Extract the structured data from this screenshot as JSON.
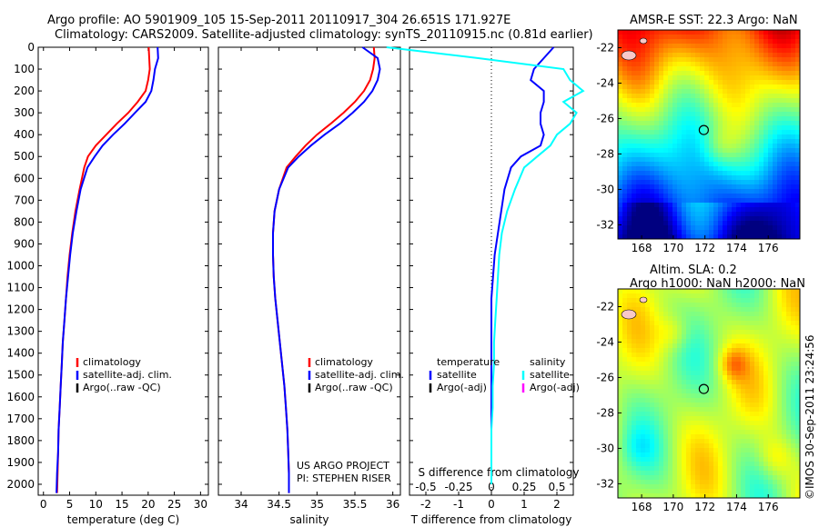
{
  "header": {
    "line1": "Argo profile: AO 5901909_105 15-Sep-2011 20110917_304 26.651S 171.927E",
    "line2": "Climatology: CARS2009. Satellite-adjusted climatology: synTS_20110915.nc (0.81d earlier)"
  },
  "colors": {
    "climatology": "#ff0000",
    "satellite": "#0000ff",
    "satellite_s": "#00ffff",
    "argo": "#000000",
    "argo_s": "#ff00ff"
  },
  "chart_data": [
    {
      "type": "line",
      "id": "temperature",
      "xlabel": "temperature (deg C)",
      "ylabel": "",
      "xlim": [
        -1,
        31.5
      ],
      "ylim": [
        2050,
        0
      ],
      "xticks": [
        "0",
        "5",
        "10",
        "15",
        "20",
        "25",
        "30"
      ],
      "yticks": [
        "0",
        "100",
        "200",
        "300",
        "400",
        "500",
        "600",
        "700",
        "800",
        "900",
        "1000",
        "1100",
        "1200",
        "1300",
        "1400",
        "1500",
        "1600",
        "1700",
        "1800",
        "1900",
        "2000"
      ],
      "legend": [
        "climatology",
        "satellite-adj. clim.",
        "Argo(..raw -QC)"
      ],
      "series": [
        {
          "name": "climatology",
          "color": "#ff0000",
          "x": [
            20.1,
            20.2,
            20.3,
            20.0,
            19.5,
            18.0,
            16.2,
            14.0,
            12.0,
            10.0,
            8.5,
            7.8,
            6.9,
            6.1,
            5.5,
            5.0,
            4.6,
            4.3,
            4.0,
            3.7,
            3.5,
            3.3,
            3.1,
            2.9,
            2.8,
            2.7,
            2.6
          ],
          "y": [
            0,
            50,
            100,
            150,
            200,
            250,
            300,
            350,
            400,
            450,
            500,
            550,
            650,
            750,
            850,
            950,
            1050,
            1150,
            1250,
            1350,
            1450,
            1550,
            1650,
            1750,
            1850,
            1950,
            2040
          ]
        },
        {
          "name": "satellite-adj. clim.",
          "color": "#0000ff",
          "x": [
            21.8,
            21.9,
            21.3,
            21.0,
            20.6,
            19.5,
            17.5,
            15.5,
            13.3,
            11.3,
            9.8,
            8.4,
            7.1,
            6.3,
            5.6,
            5.1,
            4.7,
            4.3,
            4.0,
            3.7,
            3.5,
            3.3,
            3.1,
            2.9,
            2.8,
            2.6,
            2.5
          ],
          "y": [
            0,
            50,
            100,
            150,
            200,
            250,
            300,
            350,
            400,
            450,
            500,
            550,
            650,
            750,
            850,
            950,
            1050,
            1150,
            1250,
            1350,
            1450,
            1550,
            1650,
            1750,
            1850,
            1950,
            2040
          ]
        }
      ]
    },
    {
      "type": "line",
      "id": "salinity",
      "xlabel": "salinity",
      "ylabel": "",
      "xlim": [
        33.7,
        36.1
      ],
      "ylim": [
        2050,
        0
      ],
      "xticks": [
        "34",
        "34.5",
        "35",
        "35.5",
        "36"
      ],
      "legend": [
        "climatology",
        "satellite-adj. clim.",
        "Argo(..raw -QC)"
      ],
      "annotation": [
        "US ARGO PROJECT",
        "PI: STEPHEN RISER"
      ],
      "series": [
        {
          "name": "climatology",
          "color": "#ff0000",
          "x": [
            35.75,
            35.76,
            35.74,
            35.7,
            35.62,
            35.5,
            35.35,
            35.18,
            35.0,
            34.85,
            34.72,
            34.6,
            34.5,
            34.44,
            34.42,
            34.42,
            34.43,
            34.45,
            34.48,
            34.51,
            34.54,
            34.57,
            34.59,
            34.61,
            34.62,
            34.63,
            34.63
          ],
          "y": [
            0,
            50,
            100,
            150,
            200,
            250,
            300,
            350,
            400,
            450,
            500,
            550,
            650,
            750,
            850,
            950,
            1050,
            1150,
            1250,
            1350,
            1450,
            1550,
            1650,
            1750,
            1850,
            1950,
            2040
          ]
        },
        {
          "name": "satellite-adj. clim.",
          "color": "#0000ff",
          "x": [
            35.6,
            35.8,
            35.83,
            35.8,
            35.73,
            35.62,
            35.47,
            35.3,
            35.1,
            34.92,
            34.76,
            34.62,
            34.5,
            34.44,
            34.42,
            34.42,
            34.43,
            34.45,
            34.48,
            34.51,
            34.54,
            34.57,
            34.59,
            34.61,
            34.62,
            34.63,
            34.63
          ],
          "y": [
            0,
            50,
            100,
            150,
            200,
            250,
            300,
            350,
            400,
            450,
            500,
            550,
            650,
            750,
            850,
            950,
            1050,
            1150,
            1250,
            1350,
            1450,
            1550,
            1650,
            1750,
            1850,
            1950,
            2040
          ]
        }
      ]
    },
    {
      "type": "line",
      "id": "difference",
      "xlabel": "T difference from climatology",
      "xlabel2": "S difference from climatology",
      "xlim": [
        -2.5,
        2.5
      ],
      "xlim_s": [
        -0.625,
        0.625
      ],
      "ylim": [
        2050,
        0
      ],
      "xticks": [
        "-2",
        "-1",
        "0",
        "1",
        "2"
      ],
      "xticks_s": [
        "-0.5",
        "-0.25",
        "0",
        "0.25",
        "0.5"
      ],
      "legend_t": [
        "temperature",
        "satellite",
        "Argo(-adj)"
      ],
      "legend_s": [
        "salinity",
        "satellite",
        "Argo(-adj)"
      ],
      "series": [
        {
          "name": "satellite",
          "color": "#0000ff",
          "var": "T",
          "x": [
            1.9,
            1.6,
            1.3,
            1.2,
            1.6,
            1.6,
            1.5,
            1.5,
            1.6,
            1.5,
            0.9,
            0.6,
            0.4,
            0.3,
            0.2,
            0.1,
            0.05,
            0.0,
            0.0,
            0.0,
            0.0,
            0.0,
            0.0,
            0.0,
            0.0,
            0.0
          ],
          "y": [
            0,
            50,
            100,
            150,
            200,
            250,
            300,
            350,
            400,
            450,
            500,
            550,
            650,
            750,
            850,
            950,
            1050,
            1150,
            1250,
            1350,
            1450,
            1550,
            1650,
            1750,
            1850,
            2000
          ]
        },
        {
          "name": "satellite",
          "color": "#00ffff",
          "var": "S",
          "x": [
            -0.8,
            -0.1,
            0.55,
            0.6,
            0.7,
            0.55,
            0.65,
            0.6,
            0.5,
            0.45,
            0.35,
            0.25,
            0.18,
            0.12,
            0.08,
            0.06,
            0.05,
            0.04,
            0.03,
            0.02,
            0.02,
            0.01,
            0.01,
            0.0,
            0.0,
            0.0
          ],
          "y": [
            0,
            50,
            100,
            150,
            200,
            250,
            300,
            350,
            400,
            450,
            500,
            550,
            650,
            750,
            850,
            950,
            1050,
            1150,
            1250,
            1350,
            1450,
            1550,
            1650,
            1750,
            1850,
            2000
          ]
        }
      ]
    },
    {
      "type": "heatmap",
      "id": "sst-map",
      "title": "AMSR-E SST: 22.3  Argo: NaN",
      "xticks": [
        "168",
        "170",
        "172",
        "174",
        "176"
      ],
      "yticks": [
        "-22",
        "-24",
        "-26",
        "-28",
        "-30",
        "-32"
      ],
      "marker": {
        "lon": 171.927,
        "lat": -26.651
      }
    },
    {
      "type": "heatmap",
      "id": "sla-map",
      "title": "Altim. SLA: 0.2",
      "subtitle": "Argo h1000: NaN h2000: NaN",
      "xticks": [
        "168",
        "170",
        "172",
        "174",
        "176"
      ],
      "yticks": [
        "-22",
        "-24",
        "-26",
        "-28",
        "-30",
        "-32"
      ],
      "marker": {
        "lon": 171.927,
        "lat": -26.651
      }
    }
  ],
  "footer": {
    "credit": "©IMOS 30-Sep-2011 23:24:56"
  }
}
